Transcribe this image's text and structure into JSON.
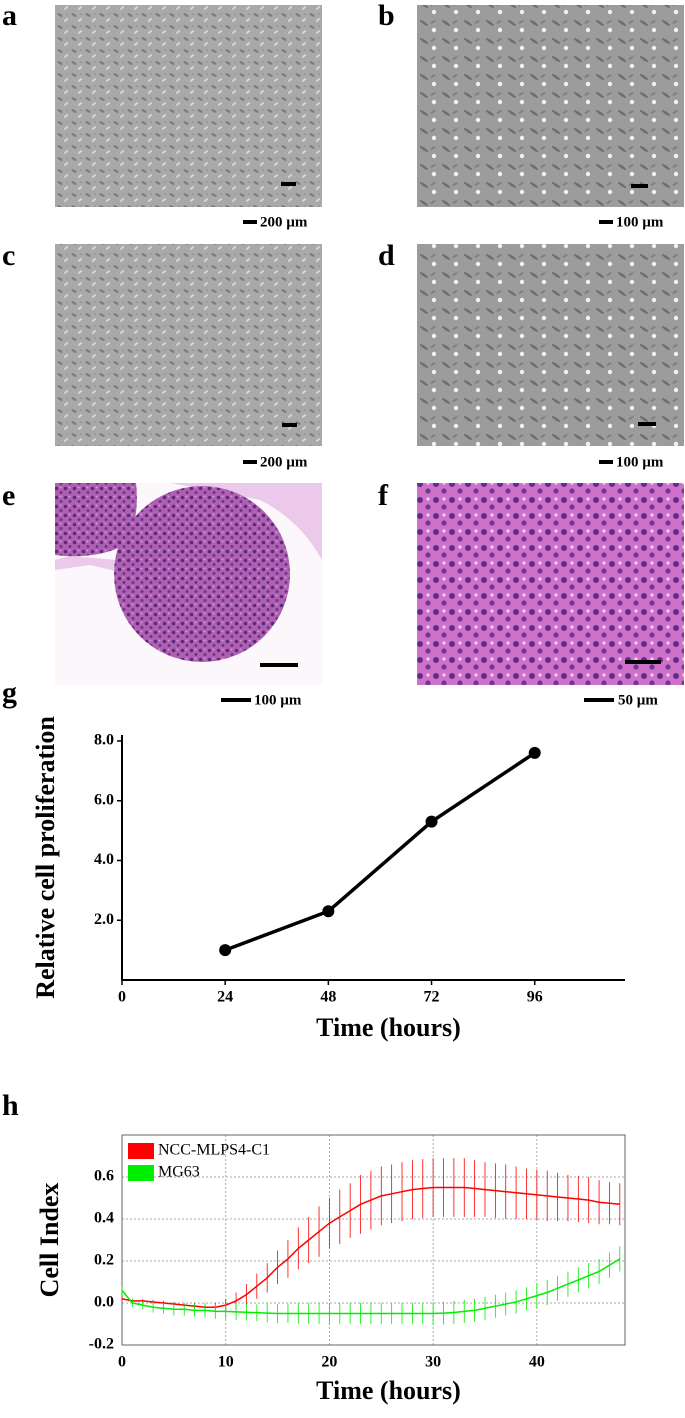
{
  "panels": [
    {
      "label": "a",
      "scale": "200 µm"
    },
    {
      "label": "b",
      "scale": "100 µm"
    },
    {
      "label": "c",
      "scale": "200 µm"
    },
    {
      "label": "d",
      "scale": "100 µm"
    },
    {
      "label": "e",
      "scale": "100 µm"
    },
    {
      "label": "f",
      "scale": "50 µm"
    }
  ],
  "chart_data": [
    {
      "type": "line",
      "label": "g",
      "xlabel": "Time (hours)",
      "ylabel": "Relative cell proliferation",
      "xlim": [
        0,
        117
      ],
      "xticks": [
        0,
        24,
        48,
        72,
        96
      ],
      "ylim": [
        0,
        8.2
      ],
      "yticks": [
        {
          "value": 2,
          "label": "2.0"
        },
        {
          "value": 4,
          "label": "4.0"
        },
        {
          "value": 6,
          "label": "6.0"
        },
        {
          "value": 8,
          "label": "8.0"
        }
      ],
      "grid": false,
      "markers": true,
      "x": [
        24,
        48,
        72,
        96
      ],
      "series": [
        {
          "color": "#000000",
          "values": [
            1.0,
            2.3,
            5.3,
            7.6
          ],
          "errors": [
            0.05,
            0.08,
            0.15,
            0.15
          ]
        }
      ]
    },
    {
      "type": "line",
      "label": "h",
      "xlabel": "Time (hours)",
      "ylabel": "Cell Index",
      "xlim": [
        0,
        48.5
      ],
      "xticks": [
        0,
        10,
        20,
        30,
        40
      ],
      "ylim": [
        -0.2,
        0.8
      ],
      "yticks": [
        -0.2,
        {
          "value": 0,
          "label": "0.0"
        },
        0.2,
        0.4,
        0.6
      ],
      "grid": true,
      "markers": false,
      "legend": "upper left",
      "x": [
        0,
        1,
        2,
        3,
        4,
        5,
        6,
        7,
        8,
        9,
        10,
        11,
        12,
        13,
        14,
        15,
        16,
        17,
        18,
        19,
        20,
        21,
        22,
        23,
        24,
        25,
        26,
        27,
        28,
        29,
        30,
        31,
        32,
        33,
        34,
        35,
        36,
        37,
        38,
        39,
        40,
        41,
        42,
        43,
        44,
        45,
        46,
        47,
        48
      ],
      "series": [
        {
          "name": "NCC-MLPS4-C1",
          "color": "#ff0000",
          "values": [
            0.02,
            0.01,
            0.01,
            0.005,
            0,
            -0.005,
            -0.01,
            -0.015,
            -0.02,
            -0.02,
            -0.01,
            0.01,
            0.04,
            0.08,
            0.12,
            0.17,
            0.21,
            0.26,
            0.3,
            0.34,
            0.38,
            0.41,
            0.44,
            0.47,
            0.49,
            0.51,
            0.52,
            0.53,
            0.54,
            0.545,
            0.55,
            0.55,
            0.55,
            0.55,
            0.545,
            0.54,
            0.535,
            0.53,
            0.525,
            0.52,
            0.515,
            0.51,
            0.505,
            0.5,
            0.495,
            0.49,
            0.48,
            0.475,
            0.47
          ],
          "errors": [
            0.01,
            0.01,
            0.01,
            0.01,
            0.01,
            0.01,
            0.01,
            0.015,
            0.015,
            0.02,
            0.03,
            0.04,
            0.05,
            0.06,
            0.07,
            0.08,
            0.09,
            0.1,
            0.11,
            0.12,
            0.12,
            0.13,
            0.13,
            0.14,
            0.14,
            0.14,
            0.14,
            0.14,
            0.14,
            0.14,
            0.14,
            0.14,
            0.14,
            0.14,
            0.135,
            0.13,
            0.13,
            0.13,
            0.125,
            0.12,
            0.12,
            0.12,
            0.115,
            0.11,
            0.11,
            0.11,
            0.105,
            0.1,
            0.1
          ]
        },
        {
          "name": "MG63",
          "color": "#00ee00",
          "values": [
            0.06,
            0,
            -0.01,
            -0.02,
            -0.025,
            -0.03,
            -0.03,
            -0.035,
            -0.035,
            -0.04,
            -0.04,
            -0.042,
            -0.044,
            -0.046,
            -0.048,
            -0.05,
            -0.05,
            -0.05,
            -0.05,
            -0.05,
            -0.05,
            -0.05,
            -0.05,
            -0.05,
            -0.05,
            -0.05,
            -0.05,
            -0.05,
            -0.05,
            -0.05,
            -0.05,
            -0.048,
            -0.045,
            -0.04,
            -0.035,
            -0.025,
            -0.015,
            -0.005,
            0.005,
            0.02,
            0.035,
            0.05,
            0.07,
            0.09,
            0.11,
            0.13,
            0.15,
            0.18,
            0.21
          ],
          "errors": [
            0.02,
            0.02,
            0.02,
            0.025,
            0.025,
            0.03,
            0.03,
            0.03,
            0.035,
            0.035,
            0.035,
            0.04,
            0.04,
            0.04,
            0.045,
            0.045,
            0.045,
            0.05,
            0.05,
            0.05,
            0.05,
            0.05,
            0.05,
            0.05,
            0.05,
            0.05,
            0.05,
            0.05,
            0.05,
            0.05,
            0.055,
            0.055,
            0.055,
            0.055,
            0.055,
            0.055,
            0.055,
            0.055,
            0.055,
            0.055,
            0.06,
            0.06,
            0.06,
            0.06,
            0.06,
            0.06,
            0.06,
            0.06,
            0.06
          ]
        }
      ]
    }
  ]
}
